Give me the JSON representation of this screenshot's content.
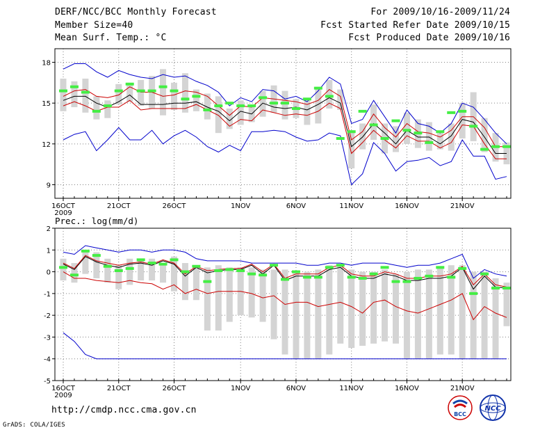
{
  "header": {
    "title": "DERF/NCC/BCC Monthly Forecast",
    "member_size": "Member Size=40",
    "variable": "Mean Surf. Temp.: °C",
    "period": "For 2009/10/16-2009/11/24",
    "fcst_started": "Fcst Started Refer Date 2009/10/15",
    "fcst_produced": "Fcst Produced Date 2009/10/16"
  },
  "footer": {
    "url": "http://cmdp.ncc.cma.gov.cn",
    "grads": "GrADS: COLA/IGES",
    "logo_bcc": "BCC",
    "logo_ncc": "NCC"
  },
  "colors": {
    "envelope": "#0000cc",
    "spread": "#cc0000",
    "mean": "#000000",
    "bar": "#d4d4d4",
    "marker": "#44ee44",
    "grid": "#808080"
  },
  "chart_data": [
    {
      "type": "line",
      "name": "temperature",
      "ylabel": "",
      "ylim": [
        8,
        19
      ],
      "yticks": [
        9,
        12,
        15,
        18
      ],
      "xticks": [
        {
          "day": 0,
          "label": "16OCT"
        },
        {
          "day": 5,
          "label": "21OCT"
        },
        {
          "day": 10,
          "label": "26OCT"
        },
        {
          "day": 16,
          "label": "1NOV"
        },
        {
          "day": 21,
          "label": "6NOV"
        },
        {
          "day": 26,
          "label": "11NOV"
        },
        {
          "day": 31,
          "label": "16NOV"
        },
        {
          "day": 36,
          "label": "21NOV"
        }
      ],
      "year_label": "2009",
      "series": [
        {
          "name": "mean",
          "values": [
            15.2,
            15.5,
            15.5,
            15.0,
            14.7,
            15.1,
            15.6,
            14.9,
            14.9,
            14.9,
            15.0,
            15.0,
            15.1,
            14.7,
            14.4,
            13.7,
            14.4,
            14.2,
            15.0,
            14.7,
            14.6,
            14.7,
            14.5,
            14.9,
            15.4,
            15.0,
            11.8,
            12.5,
            13.5,
            12.8,
            12.0,
            13.0,
            12.5,
            12.5,
            12.0,
            12.6,
            13.8,
            13.6,
            12.5,
            11.3,
            11.3
          ]
        },
        {
          "name": "spread_upper",
          "values": [
            15.5,
            15.9,
            16.0,
            15.5,
            15.4,
            15.6,
            16.2,
            15.8,
            15.8,
            15.5,
            15.6,
            15.9,
            15.8,
            15.5,
            14.8,
            14.1,
            14.8,
            14.7,
            15.4,
            15.3,
            15.2,
            15.1,
            14.9,
            15.2,
            16.0,
            15.5,
            12.3,
            12.9,
            14.2,
            13.2,
            12.5,
            13.5,
            12.9,
            12.8,
            12.5,
            13.0,
            14.0,
            14.0,
            13.2,
            11.8,
            11.8
          ]
        },
        {
          "name": "spread_lower",
          "values": [
            14.8,
            15.1,
            14.8,
            14.4,
            14.7,
            14.7,
            15.2,
            14.5,
            14.6,
            14.6,
            14.6,
            14.6,
            14.9,
            14.5,
            14.1,
            13.3,
            13.8,
            13.7,
            14.5,
            14.3,
            14.1,
            14.2,
            14.1,
            14.4,
            15.0,
            14.6,
            11.3,
            12.1,
            13.0,
            12.3,
            11.7,
            12.6,
            12.2,
            12.2,
            11.7,
            12.1,
            13.4,
            13.3,
            12.0,
            10.9,
            10.9
          ]
        },
        {
          "name": "max",
          "values": [
            17.5,
            17.9,
            17.9,
            17.3,
            16.9,
            17.4,
            17.1,
            16.9,
            16.8,
            17.1,
            16.9,
            17.0,
            16.6,
            16.3,
            15.8,
            14.8,
            15.4,
            15.1,
            16.0,
            15.9,
            15.3,
            15.5,
            15.1,
            15.9,
            16.9,
            16.4,
            13.5,
            13.8,
            15.2,
            14.0,
            12.8,
            14.5,
            13.5,
            13.3,
            12.8,
            13.5,
            15.0,
            14.7,
            13.8,
            12.8,
            12.0
          ]
        },
        {
          "name": "min",
          "values": [
            12.3,
            12.7,
            12.9,
            11.5,
            12.3,
            13.2,
            12.3,
            12.3,
            13.0,
            12.0,
            12.6,
            13.0,
            12.5,
            11.8,
            11.4,
            11.9,
            11.5,
            12.9,
            12.9,
            13.0,
            12.9,
            12.5,
            12.2,
            12.3,
            12.8,
            12.6,
            9.0,
            9.8,
            12.1,
            11.3,
            10.0,
            10.7,
            10.8,
            11.0,
            10.4,
            10.7,
            12.3,
            11.1,
            11.1,
            9.4,
            9.6
          ]
        },
        {
          "name": "member_marker",
          "values": [
            15.9,
            16.2,
            15.8,
            14.4,
            14.8,
            15.9,
            16.4,
            15.9,
            15.9,
            16.2,
            15.9,
            15.3,
            15.5,
            14.5,
            14.8,
            15.0,
            14.8,
            14.8,
            15.4,
            15.0,
            15.0,
            14.6,
            15.3,
            16.1,
            15.5,
            12.4,
            12.9,
            14.4,
            13.4,
            12.4,
            13.7,
            13.0,
            12.8,
            12.1,
            12.9,
            14.3,
            14.4,
            13.3,
            11.6,
            11.8,
            11.8
          ]
        }
      ],
      "bar_top": [
        16.8,
        16.6,
        16.8,
        15.5,
        15.2,
        16.4,
        16.5,
        16.7,
        17.0,
        17.5,
        16.5,
        17.2,
        16.0,
        15.7,
        15.5,
        14.6,
        15.2,
        14.8,
        15.9,
        16.3,
        15.9,
        15.3,
        15.4,
        16.2,
        16.7,
        16.0,
        13.0,
        13.5,
        14.9,
        13.5,
        13.3,
        14.3,
        13.8,
        13.6,
        12.8,
        13.5,
        15.0,
        15.8,
        13.9,
        12.8,
        12.1
      ],
      "bar_bottom": [
        14.4,
        14.7,
        14.3,
        13.8,
        13.9,
        14.9,
        15.1,
        14.8,
        14.6,
        14.1,
        14.5,
        14.3,
        14.4,
        13.8,
        12.8,
        13.1,
        13.4,
        13.6,
        14.0,
        14.3,
        13.8,
        13.9,
        13.4,
        13.5,
        14.6,
        14.5,
        10.2,
        11.6,
        12.3,
        11.3,
        11.4,
        12.0,
        11.7,
        11.5,
        11.6,
        11.5,
        12.4,
        12.2,
        11.4,
        10.7,
        10.5
      ]
    },
    {
      "type": "line",
      "name": "precipitation",
      "ylabel": "Prec.: log(mm/d)",
      "ylim": [
        -5,
        2
      ],
      "yticks": [
        -5,
        -4,
        -3,
        -2,
        -1,
        0,
        1,
        2
      ],
      "xticks": [
        {
          "day": 0,
          "label": "16OCT"
        },
        {
          "day": 5,
          "label": "21OCT"
        },
        {
          "day": 10,
          "label": "26OCT"
        },
        {
          "day": 16,
          "label": "1NOV"
        },
        {
          "day": 21,
          "label": "6NOV"
        },
        {
          "day": 26,
          "label": "11NOV"
        },
        {
          "day": 31,
          "label": "16NOV"
        },
        {
          "day": 36,
          "label": "21NOV"
        }
      ],
      "year_label": "2009",
      "series": [
        {
          "name": "mean",
          "values": [
            0.35,
            0.1,
            0.7,
            0.45,
            0.3,
            0.2,
            0.35,
            0.4,
            0.3,
            0.5,
            0.35,
            -0.2,
            0.2,
            -0.05,
            0.05,
            0.1,
            0.1,
            0.3,
            -0.1,
            0.3,
            -0.4,
            -0.2,
            -0.2,
            -0.2,
            0.1,
            0.2,
            -0.2,
            -0.3,
            -0.3,
            -0.1,
            -0.2,
            -0.4,
            -0.4,
            -0.3,
            -0.3,
            -0.2,
            0.2,
            -0.8,
            -0.2,
            -0.7,
            -0.75
          ]
        },
        {
          "name": "spread_upper",
          "values": [
            0.4,
            0.15,
            0.75,
            0.5,
            0.4,
            0.3,
            0.4,
            0.45,
            0.35,
            0.55,
            0.4,
            -0.1,
            0.25,
            0.05,
            0.1,
            0.15,
            0.15,
            0.35,
            0.0,
            0.35,
            -0.3,
            -0.1,
            -0.1,
            -0.1,
            0.2,
            0.3,
            -0.1,
            -0.2,
            -0.2,
            0.0,
            -0.1,
            -0.3,
            -0.3,
            -0.2,
            -0.2,
            -0.1,
            0.25,
            -0.6,
            -0.1,
            -0.6,
            -0.7
          ]
        },
        {
          "name": "spread_lower",
          "values": [
            0.0,
            -0.3,
            -0.3,
            -0.4,
            -0.45,
            -0.5,
            -0.4,
            -0.5,
            -0.55,
            -0.8,
            -0.6,
            -1.0,
            -0.8,
            -1.0,
            -0.9,
            -0.9,
            -0.9,
            -1.0,
            -1.2,
            -1.1,
            -1.5,
            -1.4,
            -1.4,
            -1.6,
            -1.5,
            -1.4,
            -1.6,
            -1.9,
            -1.4,
            -1.3,
            -1.6,
            -1.8,
            -1.9,
            -1.7,
            -1.5,
            -1.3,
            -1.0,
            -2.2,
            -1.6,
            -1.9,
            -2.1
          ]
        },
        {
          "name": "max",
          "values": [
            0.9,
            0.8,
            1.2,
            1.1,
            1.0,
            0.9,
            1.0,
            1.0,
            0.9,
            1.0,
            1.0,
            0.9,
            0.6,
            0.5,
            0.5,
            0.5,
            0.5,
            0.4,
            0.4,
            0.4,
            0.4,
            0.4,
            0.3,
            0.3,
            0.4,
            0.4,
            0.3,
            0.4,
            0.4,
            0.4,
            0.3,
            0.2,
            0.3,
            0.3,
            0.4,
            0.6,
            0.8,
            -0.3,
            0.1,
            -0.1,
            -0.2
          ]
        },
        {
          "name": "min",
          "values": [
            -2.8,
            -3.2,
            -3.8,
            -4.0,
            -4.0,
            -4.0,
            -4.0,
            -4.0,
            -4.0,
            -4.0,
            -4.0,
            -4.0,
            -4.0,
            -4.0,
            -4.0,
            -4.0,
            -4.0,
            -4.0,
            -4.0,
            -4.0,
            -4.0,
            -4.0,
            -4.0,
            -4.0,
            -4.0,
            -4.0,
            -4.0,
            -4.0,
            -4.0,
            -4.0,
            -4.0,
            -4.0,
            -4.0,
            -4.0,
            -4.0,
            -4.0,
            -4.0,
            -4.0,
            -4.0,
            -4.0,
            -4.0
          ]
        },
        {
          "name": "member_marker",
          "values": [
            0.2,
            -0.15,
            0.95,
            0.75,
            0.25,
            0.05,
            0.15,
            0.55,
            0.4,
            0.35,
            0.55,
            0.0,
            0.25,
            -0.45,
            0.05,
            0.1,
            0.05,
            -0.1,
            -0.15,
            0.3,
            -0.35,
            0.0,
            -0.25,
            -0.25,
            0.2,
            0.3,
            -0.25,
            -0.3,
            -0.1,
            0.2,
            -0.45,
            -0.45,
            -0.3,
            -0.2,
            0.2,
            -0.25,
            0.15,
            -1.0,
            -0.1,
            -0.75,
            -0.75
          ]
        }
      ],
      "bar_top": [
        0.6,
        0.4,
        1.0,
        0.9,
        0.6,
        0.3,
        0.6,
        0.5,
        0.6,
        0.4,
        0.7,
        0.4,
        0.3,
        0.2,
        0.3,
        0.2,
        0.2,
        0.2,
        0.1,
        0.1,
        0.1,
        0.0,
        0.0,
        0.1,
        0.3,
        0.3,
        0.1,
        0.0,
        0.0,
        0.1,
        -0.1,
        0.0,
        0.1,
        0.1,
        0.2,
        0.3,
        0.3,
        0.0,
        0.0,
        -0.3,
        -0.5
      ],
      "bar_bottom": [
        -0.4,
        -0.5,
        -0.1,
        -0.3,
        -0.5,
        -0.8,
        -0.6,
        -0.4,
        -0.4,
        -0.5,
        -0.9,
        -1.3,
        -1.3,
        -2.7,
        -2.7,
        -2.3,
        -2.0,
        -2.1,
        -2.3,
        -3.1,
        -3.8,
        -4.0,
        -4.0,
        -4.0,
        -3.8,
        -3.3,
        -3.5,
        -3.4,
        -3.3,
        -3.2,
        -3.3,
        -4.0,
        -4.0,
        -4.0,
        -3.8,
        -3.8,
        -4.0,
        -4.0,
        -4.0,
        -4.0,
        -2.5
      ]
    }
  ]
}
